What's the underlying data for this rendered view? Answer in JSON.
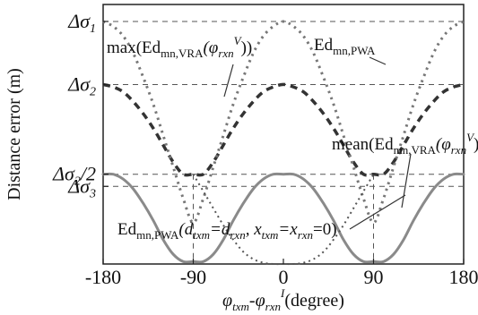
{
  "chart_data": {
    "type": "line",
    "xlabel": "φ_txm - φ_rxn^I (degree)",
    "ylabel": "Distance error (m)",
    "xlim": [
      -180,
      180
    ],
    "x_ticks": [
      -180,
      -90,
      0,
      90,
      180
    ],
    "y_ticks": [
      {
        "label": "Δσ_1",
        "value": 1.0
      },
      {
        "label": "Δσ_2",
        "value": 0.74
      },
      {
        "label": "Δσ_2/2",
        "value": 0.37
      },
      {
        "label": "Δσ_3",
        "value": 0.32
      }
    ],
    "ylim": [
      0,
      1.07
    ],
    "grid": false,
    "series": [
      {
        "name": "max(Ed_mn,VRA(φ_rxn^V))",
        "style": "dashed",
        "color": "#333333",
        "x": [
          -180,
          -170,
          -160,
          -150,
          -140,
          -130,
          -120,
          -110,
          -100,
          -90,
          -80,
          -70,
          -60,
          -50,
          -40,
          -30,
          -20,
          -10,
          0,
          10,
          20,
          30,
          40,
          50,
          60,
          70,
          80,
          90,
          100,
          110,
          120,
          130,
          140,
          150,
          160,
          170,
          180
        ],
        "values": [
          0.74,
          0.73,
          0.71,
          0.67,
          0.62,
          0.56,
          0.49,
          0.42,
          0.37,
          0.37,
          0.37,
          0.42,
          0.49,
          0.56,
          0.62,
          0.67,
          0.71,
          0.73,
          0.74,
          0.73,
          0.71,
          0.67,
          0.62,
          0.56,
          0.49,
          0.42,
          0.37,
          0.37,
          0.37,
          0.42,
          0.49,
          0.56,
          0.62,
          0.67,
          0.71,
          0.73,
          0.74
        ]
      },
      {
        "name": "Ed_mn,PWA",
        "style": "dotted",
        "color": "#777777",
        "x": [
          -180,
          -170,
          -160,
          -150,
          -140,
          -130,
          -120,
          -110,
          -100,
          -90,
          -80,
          -70,
          -60,
          -50,
          -40,
          -30,
          -20,
          -10,
          0,
          10,
          20,
          30,
          40,
          50,
          60,
          70,
          80,
          90,
          100,
          110,
          120,
          130,
          140,
          150,
          160,
          170,
          180
        ],
        "values": [
          1.0,
          0.98,
          0.94,
          0.87,
          0.77,
          0.66,
          0.53,
          0.4,
          0.27,
          0.17,
          0.27,
          0.4,
          0.53,
          0.66,
          0.77,
          0.87,
          0.94,
          0.98,
          1.0,
          0.98,
          0.94,
          0.87,
          0.77,
          0.66,
          0.53,
          0.4,
          0.27,
          0.17,
          0.27,
          0.4,
          0.53,
          0.66,
          0.77,
          0.87,
          0.94,
          0.98,
          1.0
        ]
      },
      {
        "name": "mean(Ed_mn,VRA(φ_rxn^V))",
        "style": "solid",
        "color": "#8a8a8a",
        "x": [
          -180,
          -170,
          -160,
          -150,
          -140,
          -130,
          -120,
          -110,
          -100,
          -90,
          -80,
          -70,
          -60,
          -50,
          -40,
          -30,
          -20,
          -10,
          0,
          10,
          20,
          30,
          40,
          50,
          60,
          70,
          80,
          90,
          100,
          110,
          120,
          130,
          140,
          150,
          160,
          170,
          180
        ],
        "values": [
          0.37,
          0.37,
          0.35,
          0.31,
          0.25,
          0.18,
          0.1,
          0.04,
          0.01,
          0.01,
          0.01,
          0.04,
          0.1,
          0.18,
          0.25,
          0.31,
          0.35,
          0.37,
          0.37,
          0.37,
          0.35,
          0.31,
          0.25,
          0.18,
          0.1,
          0.04,
          0.01,
          0.01,
          0.01,
          0.04,
          0.1,
          0.18,
          0.25,
          0.31,
          0.35,
          0.37,
          0.37
        ]
      },
      {
        "name": "Ed_mn,PWA(d_txm=d_rxn, x_txm=x_rxn=0)",
        "style": "dotted-fine",
        "color": "#555555",
        "x": [
          -90,
          -80,
          -70,
          -60,
          -50,
          -40,
          -30,
          -20,
          -10,
          0,
          10,
          20,
          30,
          40,
          50,
          60,
          70,
          80,
          90
        ],
        "values": [
          0.37,
          0.3,
          0.23,
          0.16,
          0.1,
          0.05,
          0.02,
          0.005,
          0.0,
          0.0,
          0.0,
          0.005,
          0.02,
          0.05,
          0.1,
          0.16,
          0.23,
          0.3,
          0.37
        ]
      }
    ],
    "annotations": [
      {
        "text_main": "max(Ed",
        "text_sub": "mn,VRA",
        "text_paren": "(φ",
        "text_sub2": "rxn",
        "text_sup": "V",
        "text_end": "))"
      },
      {
        "text_main": "Ed",
        "text_sub": "mn,PWA"
      },
      {
        "text_main": "mean(Ed",
        "text_sub": "mn,VRA",
        "text_paren": "(φ",
        "text_sub2": "rxn",
        "text_sup": "V",
        "text_end": "))"
      },
      {
        "text_main": "Ed",
        "text_sub": "mn,PWA",
        "text_paren": "(d",
        "text_sub2": "txm",
        "text_eq1": "=d",
        "text_sub3": "rxn",
        "text_comma": ", x",
        "text_sub4": "txm",
        "text_eq2": "=x",
        "text_sub5": "rxn",
        "text_end": "=0)"
      }
    ],
    "xlabel_parts": {
      "a": "φ",
      "a_sub": "txm",
      "dash": "-φ",
      "b_sub": "rxn",
      "b_sup": "I",
      "tail": "(degree)"
    },
    "ylabel_text": "Distance error (m)"
  }
}
